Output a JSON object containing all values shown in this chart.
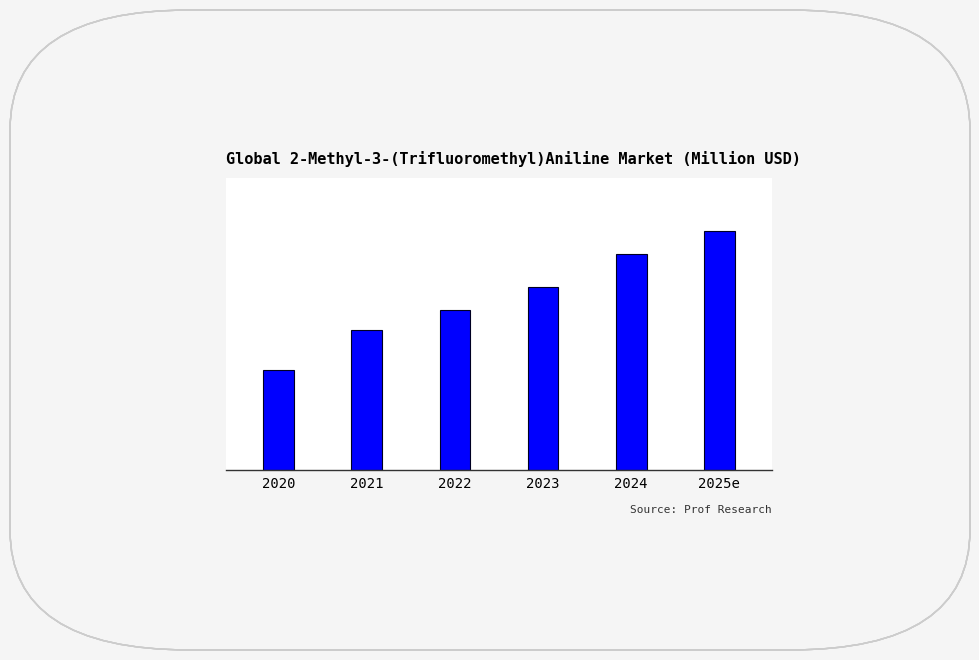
{
  "title": "Global 2-Methyl-3-(Trifluoromethyl)Aniline Market (Million USD)",
  "categories": [
    "2020",
    "2021",
    "2022",
    "2023",
    "2024",
    "2025e"
  ],
  "values": [
    30,
    42,
    48,
    55,
    65,
    72
  ],
  "bar_color": "#0000FF",
  "background_color": "#f5f5f5",
  "plot_background": "#ffffff",
  "source_text": "Source: Prof Research",
  "title_fontsize": 11,
  "tick_fontsize": 10,
  "source_fontsize": 8,
  "bar_width": 0.35,
  "bar_edgecolor": "#000022",
  "bar_edgewidth": 0.8
}
